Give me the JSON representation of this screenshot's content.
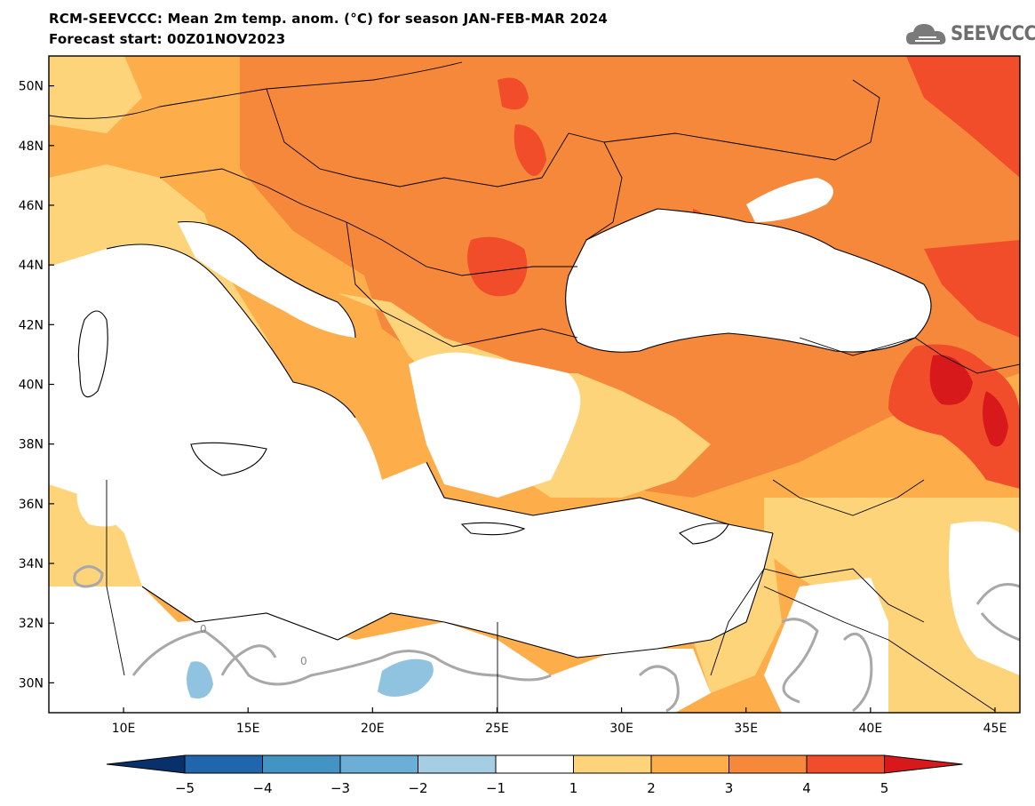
{
  "title": {
    "line1": "RCM-SEEVCCC: Mean 2m temp. anom. (°C) for season JAN-FEB-MAR 2024",
    "line2": "Forecast start: 00Z01NOV2023"
  },
  "logo": {
    "text": "SEEVCCC",
    "icon": "cloud-icon"
  },
  "map": {
    "lat_labels": [
      "50N",
      "48N",
      "46N",
      "44N",
      "42N",
      "40N",
      "38N",
      "36N",
      "34N",
      "32N",
      "30N"
    ],
    "lon_labels": [
      "10E",
      "15E",
      "20E",
      "25E",
      "30E",
      "35E",
      "40E",
      "45E"
    ],
    "extent": {
      "lon_min": 7,
      "lon_max": 46,
      "lat_min": 29,
      "lat_max": 51
    },
    "contour_label": "0"
  },
  "colorbar": {
    "tick_labels": [
      "−5",
      "−4",
      "−3",
      "−2",
      "−1",
      "1",
      "2",
      "3",
      "4",
      "5"
    ],
    "colors": [
      "#08306b",
      "#2166ac",
      "#4393c3",
      "#6baed6",
      "#a6cee3",
      "#ffffff",
      "#fdd47a",
      "#fdae4b",
      "#f5883a",
      "#f24d2a",
      "#d7191c"
    ]
  }
}
